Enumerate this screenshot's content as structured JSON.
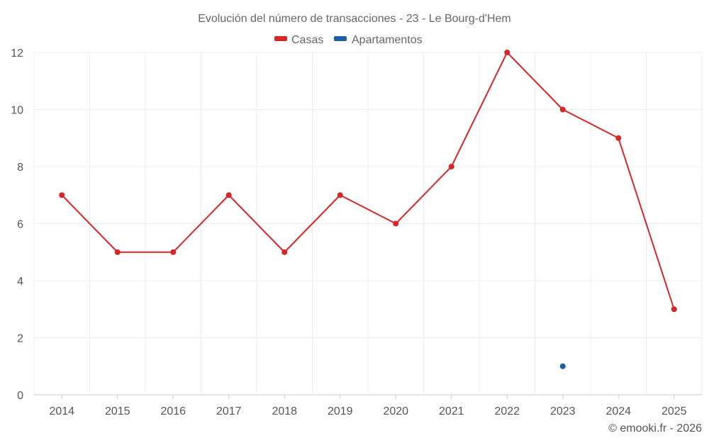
{
  "chart_data": {
    "type": "line",
    "title": "Evolución del número de transacciones - 23 - Le Bourg-d'Hem",
    "categories": [
      "2014",
      "2015",
      "2016",
      "2017",
      "2018",
      "2019",
      "2020",
      "2021",
      "2022",
      "2023",
      "2024",
      "2025"
    ],
    "ylim": [
      0,
      12
    ],
    "yticks": [
      0,
      2,
      4,
      6,
      8,
      10,
      12
    ],
    "grid": true,
    "legend_position": "top-center",
    "series": [
      {
        "name": "Casas",
        "color": "#d62728",
        "values": [
          7,
          5,
          5,
          7,
          5,
          7,
          6,
          8,
          12,
          10,
          9,
          3
        ]
      },
      {
        "name": "Apartamentos",
        "color": "#1f5fa0",
        "values": [
          null,
          null,
          null,
          null,
          null,
          null,
          null,
          null,
          null,
          1,
          null,
          null
        ]
      }
    ]
  },
  "credit": "© emooki.fr - 2026"
}
